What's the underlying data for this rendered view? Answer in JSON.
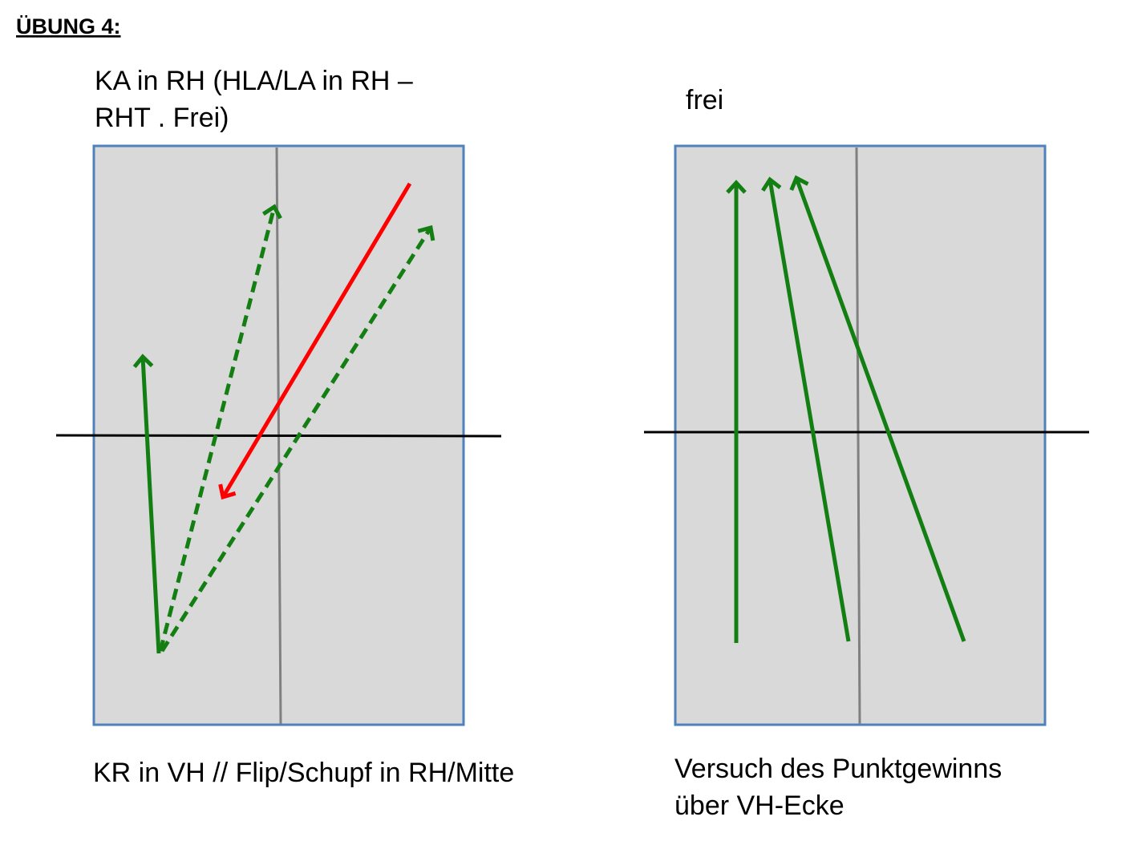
{
  "header": {
    "title": "ÜBUNG 4:"
  },
  "panels": [
    {
      "top_label": [
        "KA in RH (HLA/LA in RH –",
        "RHT . Frei)"
      ],
      "bottom_label": [
        "KR in VH // Flip/Schupf in RH/Mitte"
      ]
    },
    {
      "top_label": [
        "frei"
      ],
      "bottom_label": [
        "Versuch des Punktgewinns",
        "über VH-Ecke"
      ]
    }
  ]
}
